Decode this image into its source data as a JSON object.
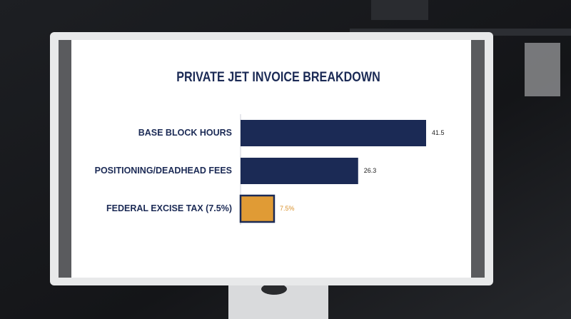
{
  "chart_data": {
    "type": "bar",
    "orientation": "horizontal",
    "title": "PRIVATE JET INVOICE BREAKDOWN",
    "categories": [
      "BASE BLOCK HOURS",
      "POSITIONING/DEADHEAD FEES",
      "FEDERAL EXCISE TAX (7.5%)"
    ],
    "values": [
      41.5,
      26.3,
      7.5
    ],
    "value_labels": [
      "41.5",
      "26.3",
      "7.5%"
    ],
    "colors": [
      "#1b2a55",
      "#1b2a55",
      "#e09b35"
    ],
    "label_colors": [
      "#222222",
      "#222222",
      "#d9902a"
    ]
  }
}
